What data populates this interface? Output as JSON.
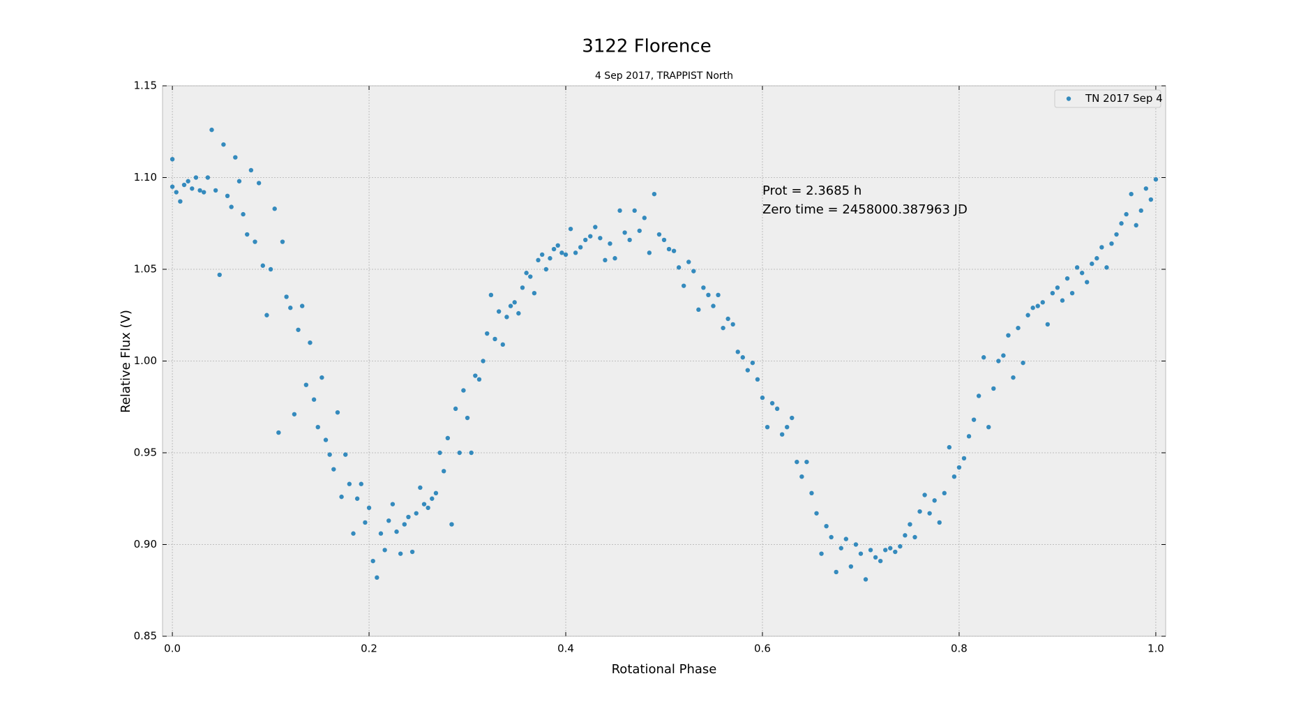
{
  "chart_data": {
    "type": "scatter",
    "title": "3122 Florence",
    "subtitle": "4 Sep 2017, TRAPPIST North",
    "x_label": "Rotational Phase",
    "y_label": "Relative Flux (V)",
    "annotations": [
      "Prot = 2.3685 h",
      "Zero time = 2458000.387963 JD"
    ],
    "xlim": [
      -0.01,
      1.01
    ],
    "ylim": [
      0.85,
      1.15
    ],
    "xticks": [
      {
        "value": 0,
        "label": "0.0"
      },
      {
        "value": 0.2,
        "label": "0.2"
      },
      {
        "value": 0.4,
        "label": "0.4"
      },
      {
        "value": 0.6,
        "label": "0.6"
      },
      {
        "value": 0.8,
        "label": "0.8"
      },
      {
        "value": 1,
        "label": "1.0"
      }
    ],
    "yticks": [
      0.85,
      {
        "value": 0.9,
        "label": "0.90"
      },
      0.95,
      {
        "value": 1,
        "label": "1.00"
      },
      1.05,
      {
        "value": 1.1,
        "label": "1.10"
      },
      1.15
    ],
    "grid": true,
    "legend": "upper right",
    "x": [
      0.0,
      0.0,
      0.004,
      0.008,
      0.012,
      0.016,
      0.02,
      0.024,
      0.028,
      0.032,
      0.036,
      0.04,
      0.044,
      0.048,
      0.052,
      0.056,
      0.06,
      0.064,
      0.068,
      0.072,
      0.076,
      0.08,
      0.084,
      0.088,
      0.092,
      0.096,
      0.1,
      0.104,
      0.108,
      0.112,
      0.116,
      0.12,
      0.124,
      0.128,
      0.132,
      0.136,
      0.14,
      0.144,
      0.148,
      0.152,
      0.156,
      0.16,
      0.164,
      0.168,
      0.172,
      0.176,
      0.18,
      0.184,
      0.188,
      0.192,
      0.196,
      0.2,
      0.204,
      0.208,
      0.212,
      0.216,
      0.22,
      0.224,
      0.228,
      0.232,
      0.236,
      0.24,
      0.244,
      0.248,
      0.252,
      0.256,
      0.26,
      0.264,
      0.268,
      0.272,
      0.276,
      0.28,
      0.284,
      0.288,
      0.292,
      0.296,
      0.3,
      0.304,
      0.308,
      0.312,
      0.316,
      0.32,
      0.324,
      0.328,
      0.332,
      0.336,
      0.34,
      0.344,
      0.348,
      0.352,
      0.356,
      0.36,
      0.364,
      0.368,
      0.372,
      0.376,
      0.38,
      0.384,
      0.388,
      0.392,
      0.396,
      0.4,
      0.405,
      0.41,
      0.415,
      0.42,
      0.425,
      0.43,
      0.435,
      0.44,
      0.445,
      0.45,
      0.455,
      0.46,
      0.465,
      0.47,
      0.475,
      0.48,
      0.485,
      0.49,
      0.495,
      0.5,
      0.505,
      0.51,
      0.515,
      0.52,
      0.525,
      0.53,
      0.535,
      0.54,
      0.545,
      0.55,
      0.555,
      0.56,
      0.565,
      0.57,
      0.575,
      0.58,
      0.585,
      0.59,
      0.595,
      0.6,
      0.605,
      0.61,
      0.615,
      0.62,
      0.625,
      0.63,
      0.635,
      0.64,
      0.645,
      0.65,
      0.655,
      0.66,
      0.665,
      0.67,
      0.675,
      0.68,
      0.685,
      0.69,
      0.695,
      0.7,
      0.705,
      0.71,
      0.715,
      0.72,
      0.725,
      0.73,
      0.735,
      0.74,
      0.745,
      0.75,
      0.755,
      0.76,
      0.765,
      0.77,
      0.775,
      0.78,
      0.785,
      0.79,
      0.795,
      0.8,
      0.805,
      0.81,
      0.815,
      0.82,
      0.825,
      0.83,
      0.835,
      0.84,
      0.845,
      0.85,
      0.855,
      0.86,
      0.865,
      0.87,
      0.875,
      0.88,
      0.885,
      0.89,
      0.895,
      0.9,
      0.905,
      0.91,
      0.915,
      0.92,
      0.925,
      0.93,
      0.935,
      0.94,
      0.945,
      0.95,
      0.955,
      0.96,
      0.965,
      0.97,
      0.975,
      0.98,
      0.985,
      0.99,
      0.995,
      1.0
    ],
    "series": [
      {
        "name": "TN 2017 Sep 4",
        "color": "#348abd",
        "values": [
          1.095,
          1.11,
          1.092,
          1.087,
          1.096,
          1.098,
          1.094,
          1.1,
          1.093,
          1.092,
          1.1,
          1.126,
          1.093,
          1.047,
          1.118,
          1.09,
          1.084,
          1.111,
          1.098,
          1.08,
          1.069,
          1.104,
          1.065,
          1.097,
          1.052,
          1.025,
          1.05,
          1.083,
          0.961,
          1.065,
          1.035,
          1.029,
          0.971,
          1.017,
          1.03,
          0.987,
          1.01,
          0.979,
          0.964,
          0.991,
          0.957,
          0.949,
          0.941,
          0.972,
          0.926,
          0.949,
          0.933,
          0.906,
          0.925,
          0.933,
          0.912,
          0.92,
          0.891,
          0.882,
          0.906,
          0.897,
          0.913,
          0.922,
          0.907,
          0.895,
          0.911,
          0.915,
          0.896,
          0.917,
          0.931,
          0.922,
          0.92,
          0.925,
          0.928,
          0.95,
          0.94,
          0.958,
          0.911,
          0.974,
          0.95,
          0.984,
          0.969,
          0.95,
          0.992,
          0.99,
          1.0,
          1.015,
          1.036,
          1.012,
          1.027,
          1.009,
          1.024,
          1.03,
          1.032,
          1.026,
          1.04,
          1.048,
          1.046,
          1.037,
          1.055,
          1.058,
          1.05,
          1.056,
          1.061,
          1.063,
          1.059,
          1.058,
          1.072,
          1.059,
          1.062,
          1.066,
          1.068,
          1.073,
          1.067,
          1.055,
          1.064,
          1.056,
          1.082,
          1.07,
          1.066,
          1.082,
          1.071,
          1.078,
          1.059,
          1.091,
          1.069,
          1.066,
          1.061,
          1.06,
          1.051,
          1.041,
          1.054,
          1.049,
          1.028,
          1.04,
          1.036,
          1.03,
          1.036,
          1.018,
          1.023,
          1.02,
          1.005,
          1.002,
          0.995,
          0.999,
          0.99,
          0.98,
          0.964,
          0.977,
          0.974,
          0.96,
          0.964,
          0.969,
          0.945,
          0.937,
          0.945,
          0.928,
          0.917,
          0.895,
          0.91,
          0.904,
          0.885,
          0.898,
          0.903,
          0.888,
          0.9,
          0.895,
          0.881,
          0.897,
          0.893,
          0.891,
          0.897,
          0.898,
          0.896,
          0.899,
          0.905,
          0.911,
          0.904,
          0.918,
          0.927,
          0.917,
          0.924,
          0.912,
          0.928,
          0.953,
          0.937,
          0.942,
          0.947,
          0.959,
          0.968,
          0.981,
          1.002,
          0.964,
          0.985,
          1.0,
          1.003,
          1.014,
          0.991,
          1.018,
          0.999,
          1.025,
          1.029,
          1.03,
          1.032,
          1.02,
          1.037,
          1.04,
          1.033,
          1.045,
          1.037,
          1.051,
          1.048,
          1.043,
          1.053,
          1.056,
          1.062,
          1.051,
          1.064,
          1.069,
          1.075,
          1.08,
          1.091,
          1.074,
          1.082,
          1.094,
          1.088,
          1.099
        ]
      }
    ]
  }
}
